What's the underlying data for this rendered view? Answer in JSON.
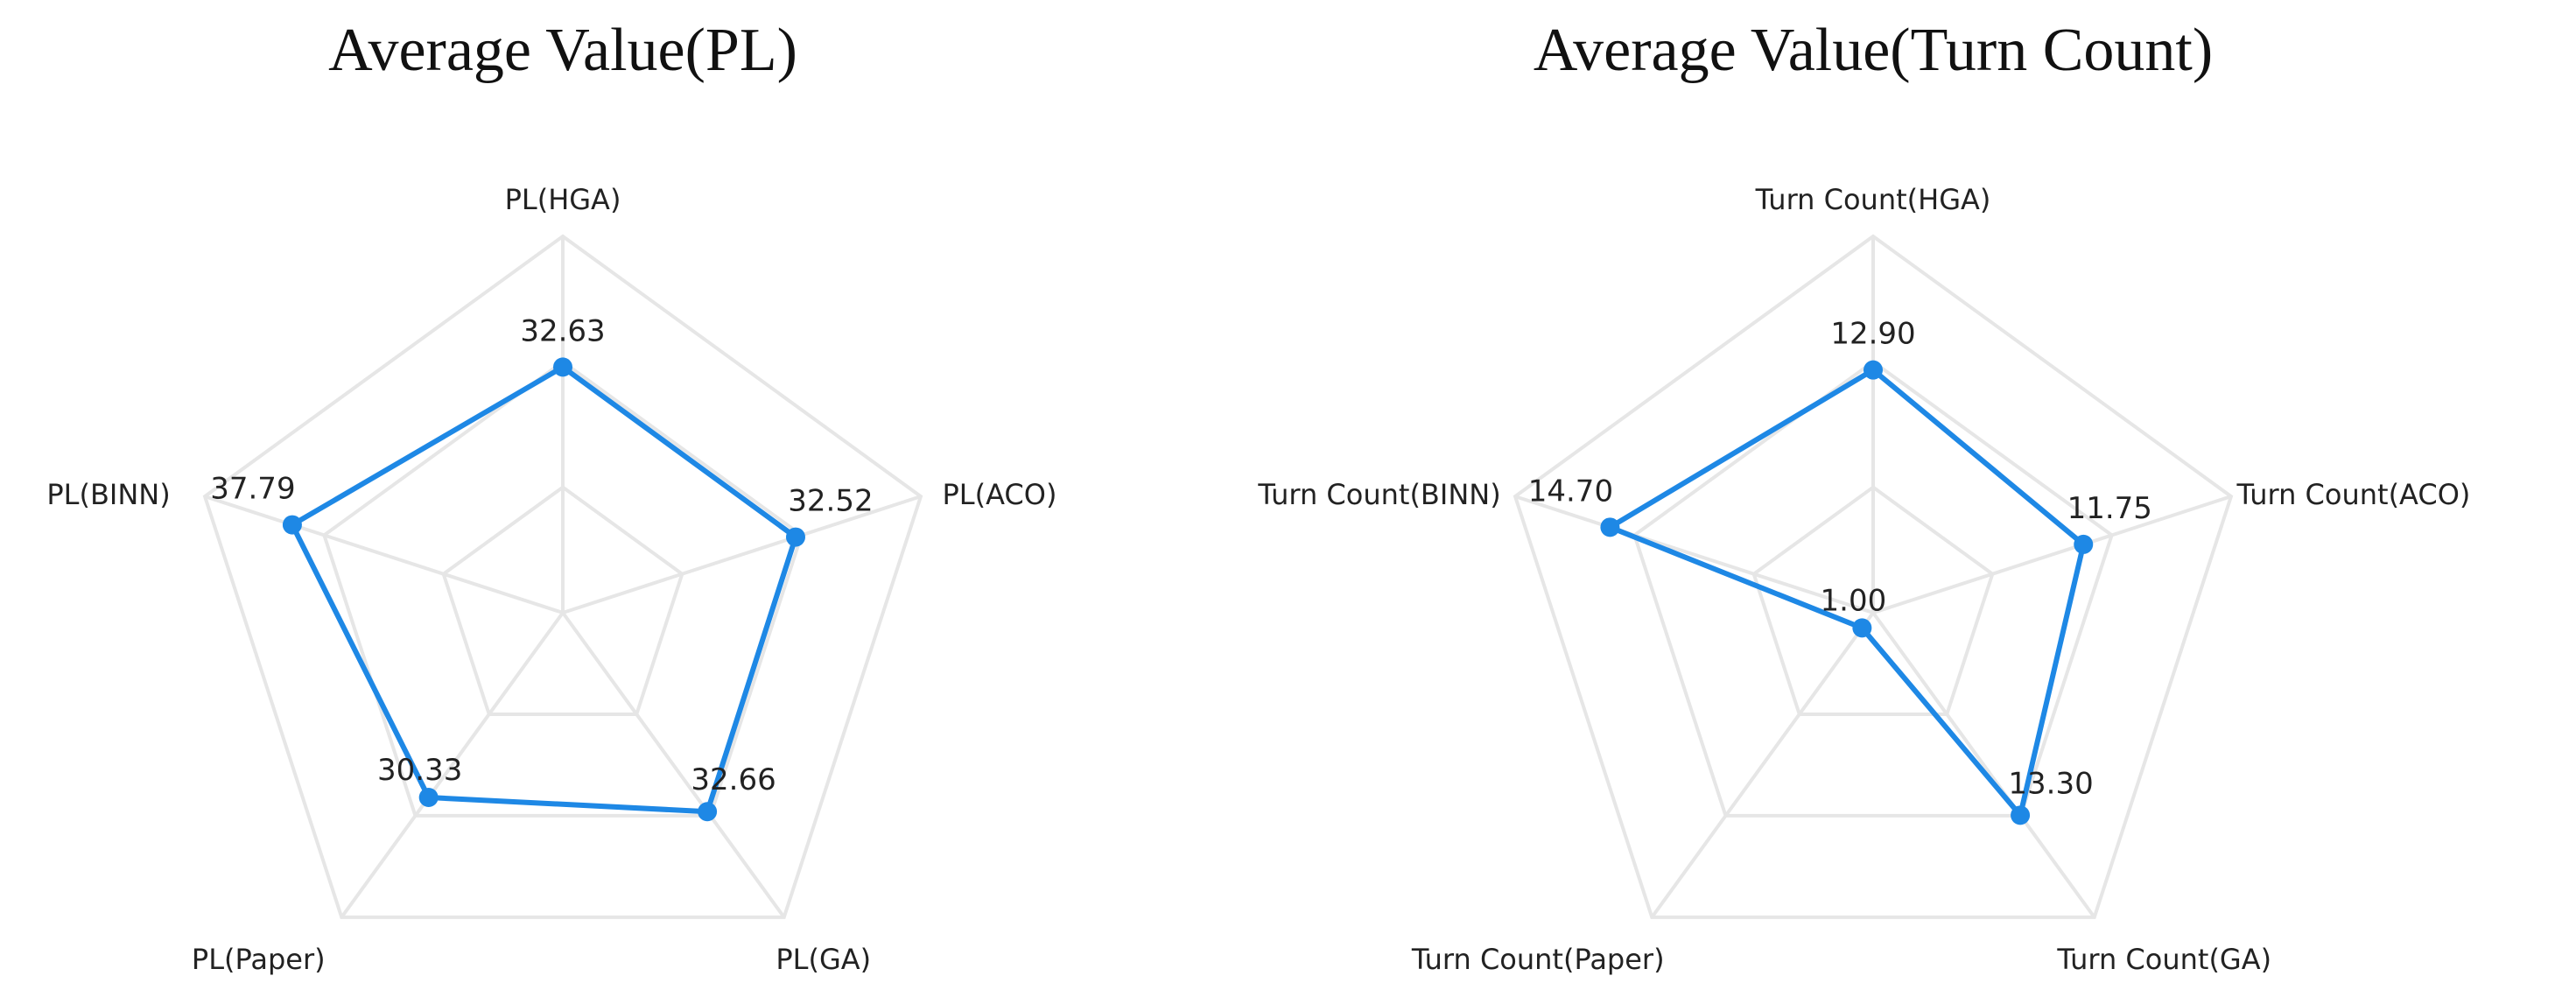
{
  "chart_data": [
    {
      "type": "radar",
      "title": "Average Value(PL)",
      "axes": [
        "PL(HGA)",
        "PL(ACO)",
        "PL(GA)",
        "PL(Paper)",
        "PL(BINN)"
      ],
      "values": [
        32.63,
        32.52,
        32.66,
        30.33,
        37.79
      ],
      "value_labels": [
        "32.63",
        "32.52",
        "32.66",
        "30.33",
        "37.79"
      ],
      "rlim": [
        0,
        50
      ],
      "grid": true,
      "color": "#1e88e5"
    },
    {
      "type": "radar",
      "title": "Average Value(Turn Count)",
      "axes": [
        "Turn Count(HGA)",
        "Turn Count(ACO)",
        "Turn Count(GA)",
        "Turn Count(Paper)",
        "Turn Count(BINN)"
      ],
      "values": [
        12.9,
        11.75,
        13.3,
        1.0,
        14.7
      ],
      "value_labels": [
        "12.90",
        "11.75",
        "13.30",
        "1.00",
        "14.70"
      ],
      "rlim": [
        0,
        20
      ],
      "grid": true,
      "color": "#1e88e5"
    }
  ]
}
